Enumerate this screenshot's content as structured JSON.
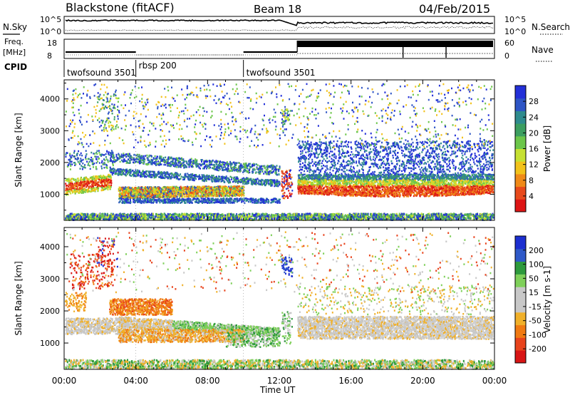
{
  "header": {
    "station": "Blackstone (fitACF)",
    "beam": "Beam 18",
    "date": "04/Feb/2015"
  },
  "panels": {
    "nsky_label": "N.Sky",
    "nsky_ticks": [
      "10^5",
      "10^0"
    ],
    "nsearch_label": "N.Search",
    "nsearch_ticks": [
      "10^5",
      "10^0"
    ],
    "freq_label_1": "Freq.",
    "freq_label_2": "[MHz]",
    "freq_ticks": [
      "18",
      "8"
    ],
    "nave_label": "Nave",
    "nave_ticks": [
      "60",
      "0"
    ],
    "cpid_label": "CPID",
    "cpid_entries": [
      {
        "name": "twofsound 3501",
        "start_hour": 0
      },
      {
        "name": "rbsp 200",
        "start_hour": 4
      },
      {
        "name": "twofsound 3501",
        "start_hour": 10
      }
    ]
  },
  "chart_data": [
    {
      "type": "heatmap",
      "panel": "power",
      "ylabel": "Slant Range [km]",
      "xlabel": "Time UT",
      "x_ticks": [
        "00:00",
        "04:00",
        "08:00",
        "12:00",
        "16:00",
        "20:00",
        "00:00"
      ],
      "xlim": [
        0,
        24
      ],
      "y_ticks": [
        "1000",
        "2000",
        "3000",
        "4000"
      ],
      "ylim": [
        180,
        4600
      ],
      "colorbar": {
        "label": "Power [dB]",
        "ticks": [
          "28",
          "24",
          "20",
          "16",
          "12",
          "8",
          "4"
        ],
        "colors": [
          "#2330d8",
          "#2e55c5",
          "#2f8b8e",
          "#3c9e60",
          "#6cc64a",
          "#c6e032",
          "#f2c21a",
          "#f08a18",
          "#e84a1c",
          "#dd1515"
        ]
      }
    },
    {
      "type": "heatmap",
      "panel": "velocity",
      "ylabel": "Slant Range [km]",
      "xlabel": "Time UT",
      "x_ticks": [
        "00:00",
        "04:00",
        "08:00",
        "12:00",
        "16:00",
        "20:00",
        "00:00"
      ],
      "xlim": [
        0,
        24
      ],
      "y_ticks": [
        "1000",
        "2000",
        "3000",
        "4000"
      ],
      "ylim": [
        180,
        4600
      ],
      "colorbar": {
        "label": "Velocity [m s-1]",
        "ticks": [
          "200",
          "100",
          "50",
          "15",
          "-15",
          "-50",
          "-100",
          "-200"
        ],
        "colors": [
          "#1c2fd0",
          "#2f59c8",
          "#2e9a3d",
          "#7fd05a",
          "#c8c8c8",
          "#c8c8c8",
          "#f0b02a",
          "#f07a12",
          "#e8431c",
          "#d81515"
        ]
      }
    }
  ]
}
